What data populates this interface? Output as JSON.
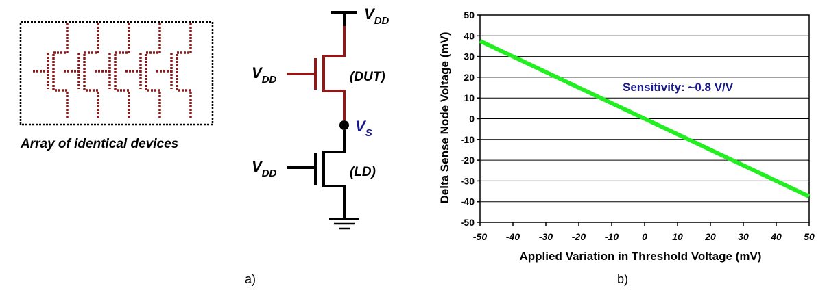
{
  "panel_a": {
    "array_caption": "Array of identical devices",
    "supply_label_main": "V",
    "supply_label_sub": "DD",
    "dut_label": "(DUT)",
    "ld_label": "(LD)",
    "sense_node_main": "V",
    "sense_node_sub": "S",
    "caption": "a)",
    "colors": {
      "dut": "#8b1a1a",
      "node": "#1a1a8c"
    }
  },
  "panel_b": {
    "caption": "b)",
    "annotation": "Sensitivity: ~0.8 V/V"
  },
  "chart_data": {
    "type": "line",
    "title": "",
    "xlabel": "Applied Variation in Threshold Voltage (mV)",
    "ylabel": "Delta Sense Node Voltage (mV)",
    "xlim": [
      -50,
      50
    ],
    "ylim": [
      -50,
      50
    ],
    "xticks": [
      -50,
      -40,
      -30,
      -20,
      -10,
      0,
      10,
      20,
      30,
      40,
      50
    ],
    "yticks": [
      -50,
      -40,
      -30,
      -20,
      -10,
      0,
      10,
      20,
      30,
      40,
      50
    ],
    "grid": "horizontal",
    "series": [
      {
        "x": [
          -50,
          50
        ],
        "y": [
          37.5,
          -37.5
        ],
        "color": "#22ee22"
      }
    ]
  }
}
